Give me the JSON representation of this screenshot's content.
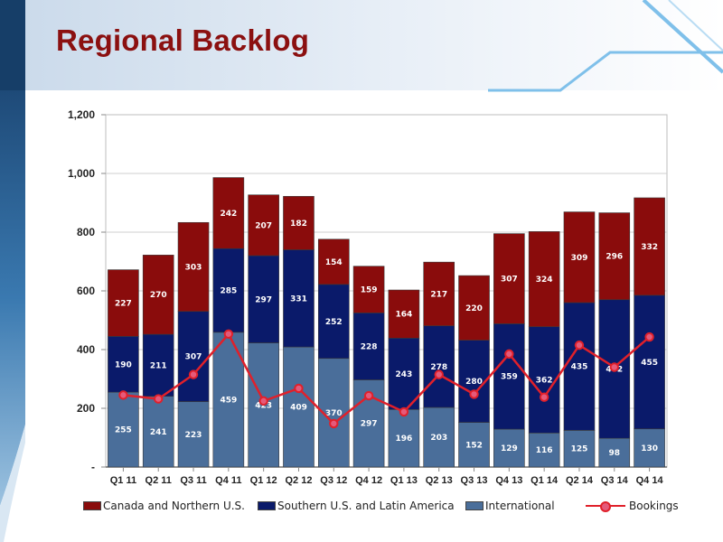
{
  "slide": {
    "title": "Regional Backlog"
  },
  "chart_data": {
    "type": "bar",
    "stacked": true,
    "title": "Regional Backlog",
    "categories": [
      "Q1 11",
      "Q2 11",
      "Q3 11",
      "Q4 11",
      "Q1 12",
      "Q2 12",
      "Q3 12",
      "Q4 12",
      "Q1 13",
      "Q2 13",
      "Q3 13",
      "Q4 13",
      "Q1 14",
      "Q2 14",
      "Q3 14",
      "Q4 14"
    ],
    "ylim": [
      0,
      1200
    ],
    "yticks": [
      0,
      200,
      400,
      600,
      800,
      1000,
      1200
    ],
    "ytick_labels": [
      "-",
      "200",
      "400",
      "600",
      "800",
      "1,000",
      "1,200"
    ],
    "grid": true,
    "legend_position": "bottom",
    "series": [
      {
        "name": "International",
        "color": "#4a6e9a",
        "values": [
          255,
          241,
          223,
          459,
          423,
          409,
          370,
          297,
          196,
          203,
          152,
          129,
          116,
          125,
          98,
          130
        ]
      },
      {
        "name": "Southern U.S. and Latin America",
        "color": "#0a1a6a",
        "values": [
          190,
          211,
          307,
          285,
          297,
          331,
          252,
          228,
          243,
          278,
          280,
          359,
          362,
          435,
          472,
          455
        ]
      },
      {
        "name": "Canada and Northern U.S.",
        "color": "#8a0c0c",
        "values": [
          227,
          270,
          303,
          242,
          207,
          182,
          154,
          159,
          164,
          217,
          220,
          307,
          324,
          309,
          296,
          332
        ]
      }
    ],
    "line_series": {
      "name": "Bookings",
      "color": "#e0202a",
      "marker_fill": "#e45a7a",
      "values": [
        245,
        232,
        315,
        453,
        225,
        268,
        148,
        243,
        188,
        315,
        248,
        385,
        238,
        415,
        340,
        443
      ]
    },
    "legend": [
      {
        "name": "Canada and Northern U.S.",
        "color": "#8a0c0c",
        "kind": "bar"
      },
      {
        "name": "Southern U.S. and Latin America",
        "color": "#0a1a6a",
        "kind": "bar"
      },
      {
        "name": "International",
        "color": "#4a6e9a",
        "kind": "bar"
      },
      {
        "name": "Bookings",
        "color": "#e0202a",
        "kind": "line"
      }
    ]
  }
}
